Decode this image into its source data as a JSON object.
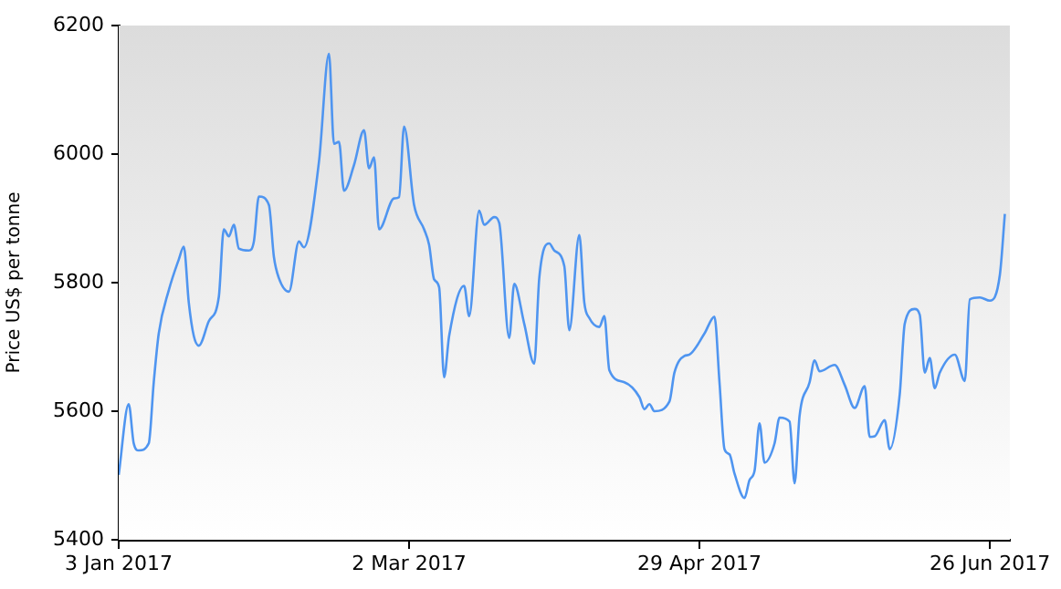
{
  "chart_data": {
    "type": "line",
    "ylabel": "Price US$ per tonne",
    "x": [
      "2017-01-03",
      "2017-01-05",
      "2017-01-06",
      "2017-01-07",
      "2017-01-09",
      "2017-01-10",
      "2017-01-11",
      "2017-01-13",
      "2017-01-15",
      "2017-01-16",
      "2017-01-17",
      "2017-01-18",
      "2017-01-19",
      "2017-01-21",
      "2017-01-23",
      "2017-01-24",
      "2017-01-25",
      "2017-01-26",
      "2017-01-27",
      "2017-01-29",
      "2017-01-30",
      "2017-01-31",
      "2017-02-02",
      "2017-02-03",
      "2017-02-04",
      "2017-02-06",
      "2017-02-08",
      "2017-02-09",
      "2017-02-12",
      "2017-02-14",
      "2017-02-15",
      "2017-02-16",
      "2017-02-17",
      "2017-02-19",
      "2017-02-21",
      "2017-02-22",
      "2017-02-23",
      "2017-02-24",
      "2017-02-27",
      "2017-02-28",
      "2017-03-01",
      "2017-03-03",
      "2017-03-05",
      "2017-03-06",
      "2017-03-07",
      "2017-03-08",
      "2017-03-09",
      "2017-03-10",
      "2017-03-13",
      "2017-03-14",
      "2017-03-16",
      "2017-03-17",
      "2017-03-19",
      "2017-03-20",
      "2017-03-22",
      "2017-03-23",
      "2017-03-25",
      "2017-03-27",
      "2017-03-28",
      "2017-03-30",
      "2017-03-31",
      "2017-04-02",
      "2017-04-03",
      "2017-04-05",
      "2017-04-06",
      "2017-04-07",
      "2017-04-09",
      "2017-04-10",
      "2017-04-11",
      "2017-04-14",
      "2017-04-17",
      "2017-04-18",
      "2017-04-19",
      "2017-04-20",
      "2017-04-23",
      "2017-04-24",
      "2017-04-26",
      "2017-04-27",
      "2017-04-30",
      "2017-05-02",
      "2017-05-03",
      "2017-05-04",
      "2017-05-05",
      "2017-05-06",
      "2017-05-08",
      "2017-05-09",
      "2017-05-10",
      "2017-05-11",
      "2017-05-12",
      "2017-05-14",
      "2017-05-15",
      "2017-05-17",
      "2017-05-18",
      "2017-05-19",
      "2017-05-21",
      "2017-05-22",
      "2017-05-23",
      "2017-05-26",
      "2017-05-28",
      "2017-05-30",
      "2017-06-01",
      "2017-06-02",
      "2017-06-03",
      "2017-06-05",
      "2017-06-06",
      "2017-06-08",
      "2017-06-09",
      "2017-06-11",
      "2017-06-12",
      "2017-06-13",
      "2017-06-14",
      "2017-06-15",
      "2017-06-16",
      "2017-06-19",
      "2017-06-21",
      "2017-06-22",
      "2017-06-24",
      "2017-06-26",
      "2017-06-28",
      "2017-06-29"
    ],
    "series": [
      {
        "color": "#4f95f0",
        "values": [
          5501,
          5611,
          5550,
          5539,
          5550,
          5645,
          5721,
          5788,
          5836,
          5856,
          5769,
          5717,
          5702,
          5740,
          5778,
          5883,
          5872,
          5890,
          5853,
          5850,
          5864,
          5934,
          5921,
          5840,
          5807,
          5786,
          5864,
          5855,
          5988,
          6156,
          6016,
          6019,
          5943,
          5983,
          6037,
          5978,
          5995,
          5883,
          5931,
          5933,
          6043,
          5921,
          5883,
          5859,
          5805,
          5793,
          5653,
          5717,
          5795,
          5748,
          5912,
          5890,
          5902,
          5893,
          5714,
          5798,
          5736,
          5674,
          5807,
          5861,
          5850,
          5826,
          5726,
          5874,
          5769,
          5745,
          5731,
          5748,
          5664,
          5645,
          5622,
          5603,
          5611,
          5600,
          5615,
          5660,
          5686,
          5688,
          5721,
          5747,
          5645,
          5541,
          5533,
          5503,
          5465,
          5493,
          5507,
          5581,
          5520,
          5550,
          5590,
          5584,
          5488,
          5593,
          5645,
          5679,
          5662,
          5672,
          5641,
          5605,
          5639,
          5560,
          5561,
          5586,
          5541,
          5626,
          5736,
          5759,
          5750,
          5660,
          5683,
          5636,
          5660,
          5688,
          5647,
          5774,
          5777,
          5772,
          5812,
          5907
        ]
      }
    ],
    "xlim": [
      "2017-01-03",
      "2017-06-30"
    ],
    "xticks": [
      {
        "value": "2017-01-03",
        "label": "3 Jan 2017"
      },
      {
        "value": "2017-03-02",
        "label": "2 Mar 2017"
      },
      {
        "value": "2017-04-29",
        "label": "29 Apr 2017"
      },
      {
        "value": "2017-06-26",
        "label": "26 Jun 2017"
      }
    ],
    "ylim": [
      5400,
      6200
    ],
    "yticks": [
      5400,
      5600,
      5800,
      6000,
      6200
    ],
    "grid": false,
    "legend": false,
    "marker": "none",
    "line_style": "solid"
  }
}
